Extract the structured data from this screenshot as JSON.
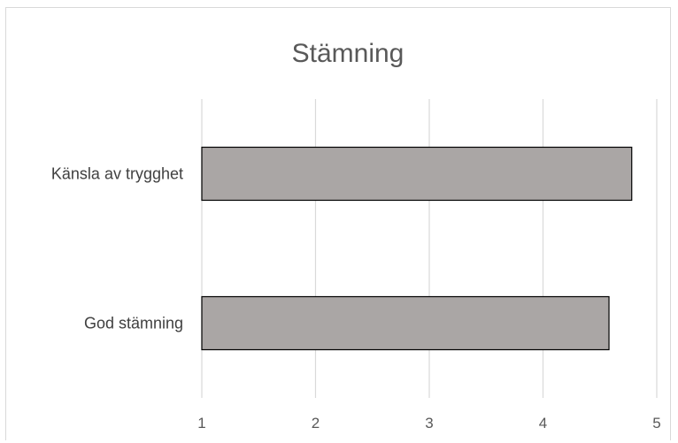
{
  "chart_data": {
    "type": "bar",
    "orientation": "horizontal",
    "title": "Stämning",
    "categories": [
      "Känsla av trygghet",
      "God stämning"
    ],
    "values": [
      4.78,
      4.58
    ],
    "xlim": [
      1,
      5
    ],
    "x_ticks": [
      "1",
      "2",
      "3",
      "4",
      "5"
    ],
    "xlabel": "",
    "ylabel": "",
    "grid": "vertical",
    "legend": "none",
    "colors": {
      "bar_fill": "#aaa6a5",
      "bar_stroke": "#000000",
      "grid": "#d9d9d9"
    }
  }
}
